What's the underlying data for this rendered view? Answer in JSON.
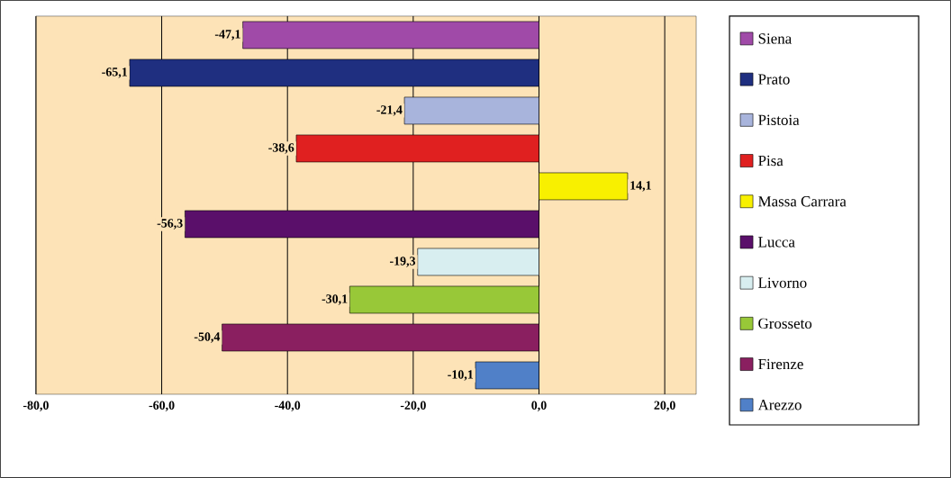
{
  "chart_data": {
    "type": "bar",
    "orientation": "horizontal",
    "categories": [
      null,
      null,
      null,
      null,
      null,
      null,
      null,
      null,
      null,
      null
    ],
    "series": [
      {
        "name": "Siena",
        "color": "#a04aa8",
        "values": [
          -47.1,
          null,
          null,
          null,
          null,
          null,
          null,
          null,
          null,
          null
        ],
        "value_labels": [
          "-47,1",
          null,
          null,
          null,
          null,
          null,
          null,
          null,
          null,
          null
        ]
      },
      {
        "name": "Prato",
        "color": "#1f2f80",
        "values": [
          null,
          -65.1,
          null,
          null,
          null,
          null,
          null,
          null,
          null,
          null
        ],
        "value_labels": [
          null,
          "-65,1",
          null,
          null,
          null,
          null,
          null,
          null,
          null,
          null
        ]
      },
      {
        "name": "Pistoia",
        "color": "#a8b4dc",
        "values": [
          null,
          null,
          -21.4,
          null,
          null,
          null,
          null,
          null,
          null,
          null
        ],
        "value_labels": [
          null,
          null,
          "-21,4",
          null,
          null,
          null,
          null,
          null,
          null,
          null
        ]
      },
      {
        "name": "Pisa",
        "color": "#e02020",
        "values": [
          null,
          null,
          null,
          -38.6,
          null,
          null,
          null,
          null,
          null,
          null
        ],
        "value_labels": [
          null,
          null,
          null,
          "-38,6",
          null,
          null,
          null,
          null,
          null,
          null
        ]
      },
      {
        "name": "Massa Carrara",
        "color": "#f8f000",
        "values": [
          null,
          null,
          null,
          null,
          14.1,
          null,
          null,
          null,
          null,
          null
        ],
        "value_labels": [
          null,
          null,
          null,
          null,
          "14,1",
          null,
          null,
          null,
          null,
          null
        ]
      },
      {
        "name": "Lucca",
        "color": "#5a0f6a",
        "values": [
          null,
          null,
          null,
          null,
          null,
          -56.3,
          null,
          null,
          null,
          null
        ],
        "value_labels": [
          null,
          null,
          null,
          null,
          null,
          "-56,3",
          null,
          null,
          null,
          null
        ]
      },
      {
        "name": "Livorno",
        "color": "#d8eef0",
        "values": [
          null,
          null,
          null,
          null,
          null,
          null,
          -19.3,
          null,
          null,
          null
        ],
        "value_labels": [
          null,
          null,
          null,
          null,
          null,
          null,
          "-19,3",
          null,
          null,
          null
        ]
      },
      {
        "name": "Grosseto",
        "color": "#98c838",
        "values": [
          null,
          null,
          null,
          null,
          null,
          null,
          null,
          -30.1,
          null,
          null
        ],
        "value_labels": [
          null,
          null,
          null,
          null,
          null,
          null,
          null,
          "-30,1",
          null,
          null
        ]
      },
      {
        "name": "Firenze",
        "color": "#8a1f60",
        "values": [
          null,
          null,
          null,
          null,
          null,
          null,
          null,
          null,
          -50.4,
          null
        ],
        "value_labels": [
          null,
          null,
          null,
          null,
          null,
          null,
          null,
          null,
          "-50,4",
          null
        ]
      },
      {
        "name": "Arezzo",
        "color": "#5080c8",
        "values": [
          null,
          null,
          null,
          null,
          null,
          null,
          null,
          null,
          null,
          -10.1
        ],
        "value_labels": [
          null,
          null,
          null,
          null,
          null,
          null,
          null,
          null,
          null,
          "-10,1"
        ]
      }
    ],
    "xlim": [
      -80,
      25
    ],
    "xticks": [
      {
        "value": -80,
        "label": "-80,0"
      },
      {
        "value": -60,
        "label": "-60,0"
      },
      {
        "value": -40,
        "label": "-40,0"
      },
      {
        "value": -20,
        "label": "-20,0"
      },
      {
        "value": 0,
        "label": "0,0"
      },
      {
        "value": 20,
        "label": "20,0"
      }
    ],
    "grid": "x",
    "legend": "right",
    "tick_labels": "x"
  }
}
